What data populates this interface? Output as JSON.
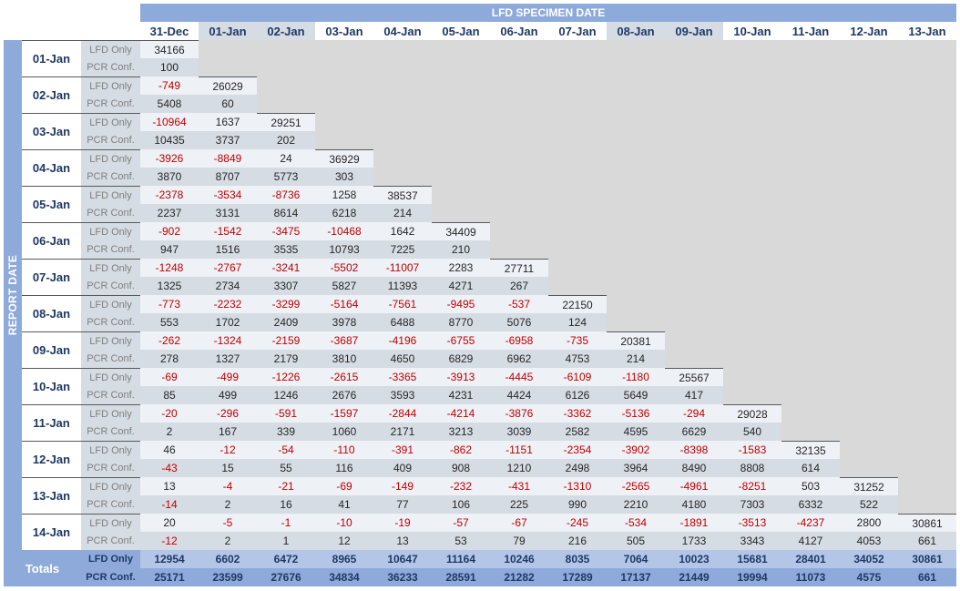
{
  "header": {
    "specimen_label": "LFD SPECIMEN DATE",
    "report_label": "REPORT DATE"
  },
  "columns": [
    "31-Dec",
    "01-Jan",
    "02-Jan",
    "03-Jan",
    "04-Jan",
    "05-Jan",
    "06-Jan",
    "07-Jan",
    "08-Jan",
    "09-Jan",
    "10-Jan",
    "11-Jan",
    "12-Jan",
    "13-Jan"
  ],
  "type_labels": {
    "lfd": "LFD Only",
    "pcr": "PCR Conf."
  },
  "rows": [
    {
      "date": "01-Jan",
      "lfd": [
        "34166"
      ],
      "pcr": [
        "100"
      ]
    },
    {
      "date": "02-Jan",
      "lfd": [
        "-749",
        "26029"
      ],
      "pcr": [
        "5408",
        "60"
      ]
    },
    {
      "date": "03-Jan",
      "lfd": [
        "-10964",
        "1637",
        "29251"
      ],
      "pcr": [
        "10435",
        "3737",
        "202"
      ]
    },
    {
      "date": "04-Jan",
      "lfd": [
        "-3926",
        "-8849",
        "24",
        "36929"
      ],
      "pcr": [
        "3870",
        "8707",
        "5773",
        "303"
      ]
    },
    {
      "date": "05-Jan",
      "lfd": [
        "-2378",
        "-3534",
        "-8736",
        "1258",
        "38537"
      ],
      "pcr": [
        "2237",
        "3131",
        "8614",
        "6218",
        "214"
      ]
    },
    {
      "date": "06-Jan",
      "lfd": [
        "-902",
        "-1542",
        "-3475",
        "-10468",
        "1642",
        "34409"
      ],
      "pcr": [
        "947",
        "1516",
        "3535",
        "10793",
        "7225",
        "210"
      ]
    },
    {
      "date": "07-Jan",
      "lfd": [
        "-1248",
        "-2767",
        "-3241",
        "-5502",
        "-11007",
        "2283",
        "27711"
      ],
      "pcr": [
        "1325",
        "2734",
        "3307",
        "5827",
        "11393",
        "4271",
        "267"
      ]
    },
    {
      "date": "08-Jan",
      "lfd": [
        "-773",
        "-2232",
        "-3299",
        "-5164",
        "-7561",
        "-9495",
        "-537",
        "22150"
      ],
      "pcr": [
        "553",
        "1702",
        "2409",
        "3978",
        "6488",
        "8770",
        "5076",
        "124"
      ]
    },
    {
      "date": "09-Jan",
      "lfd": [
        "-262",
        "-1324",
        "-2159",
        "-3687",
        "-4196",
        "-6755",
        "-6958",
        "-735",
        "20381"
      ],
      "pcr": [
        "278",
        "1327",
        "2179",
        "3810",
        "4650",
        "6829",
        "6962",
        "4753",
        "214"
      ]
    },
    {
      "date": "10-Jan",
      "lfd": [
        "-69",
        "-499",
        "-1226",
        "-2615",
        "-3365",
        "-3913",
        "-4445",
        "-6109",
        "-1180",
        "25567"
      ],
      "pcr": [
        "85",
        "499",
        "1246",
        "2676",
        "3593",
        "4231",
        "4424",
        "6126",
        "5649",
        "417"
      ]
    },
    {
      "date": "11-Jan",
      "lfd": [
        "-20",
        "-296",
        "-591",
        "-1597",
        "-2844",
        "-4214",
        "-3876",
        "-3362",
        "-5136",
        "-294",
        "29028"
      ],
      "pcr": [
        "2",
        "167",
        "339",
        "1060",
        "2171",
        "3213",
        "3039",
        "2582",
        "4595",
        "6629",
        "540"
      ]
    },
    {
      "date": "12-Jan",
      "lfd": [
        "46",
        "-12",
        "-54",
        "-110",
        "-391",
        "-862",
        "-1151",
        "-2354",
        "-3902",
        "-8398",
        "-1583",
        "32135"
      ],
      "pcr": [
        "-43",
        "15",
        "55",
        "116",
        "409",
        "908",
        "1210",
        "2498",
        "3964",
        "8490",
        "8808",
        "614"
      ]
    },
    {
      "date": "13-Jan",
      "lfd": [
        "13",
        "-4",
        "-21",
        "-69",
        "-149",
        "-232",
        "-431",
        "-1310",
        "-2565",
        "-4961",
        "-8251",
        "503",
        "31252"
      ],
      "pcr": [
        "-14",
        "2",
        "16",
        "41",
        "77",
        "106",
        "225",
        "990",
        "2210",
        "4180",
        "7303",
        "6332",
        "522"
      ]
    },
    {
      "date": "14-Jan",
      "lfd": [
        "20",
        "-5",
        "-1",
        "-10",
        "-19",
        "-57",
        "-67",
        "-245",
        "-534",
        "-1891",
        "-3513",
        "-4237",
        "2800",
        "30861"
      ],
      "pcr": [
        "-12",
        "2",
        "1",
        "12",
        "13",
        "53",
        "79",
        "216",
        "505",
        "1733",
        "3343",
        "4127",
        "4053",
        "661"
      ]
    }
  ],
  "totals": {
    "label": "Totals",
    "lfd": [
      "12954",
      "6602",
      "6472",
      "8965",
      "10647",
      "11164",
      "10246",
      "8035",
      "7064",
      "10023",
      "15681",
      "28401",
      "34052",
      "30861"
    ],
    "pcr": [
      "25171",
      "23599",
      "27676",
      "34834",
      "36233",
      "28591",
      "21282",
      "17289",
      "17137",
      "21449",
      "19994",
      "11073",
      "4575",
      "661"
    ]
  }
}
